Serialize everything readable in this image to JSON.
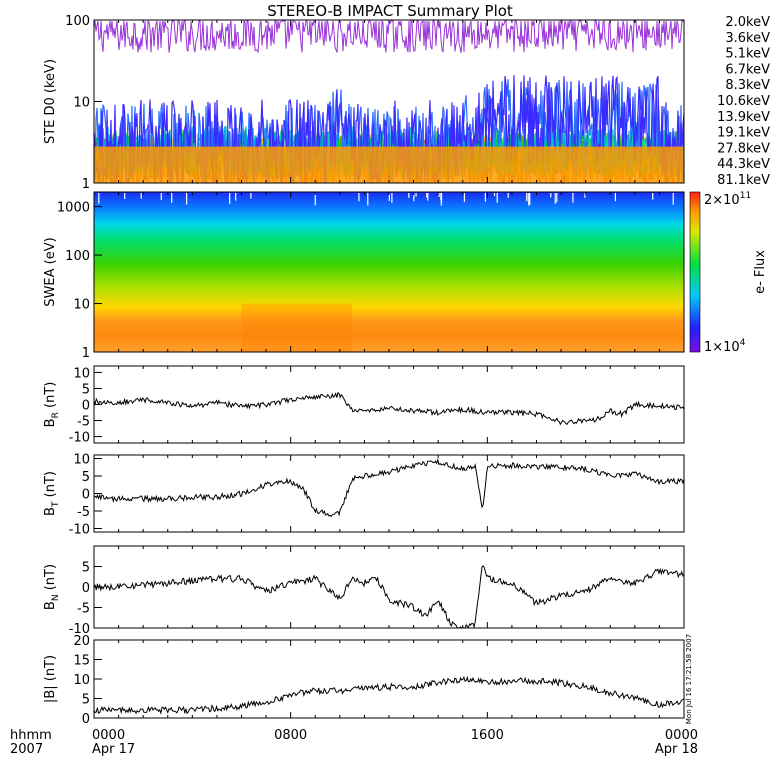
{
  "chart_data": {
    "title": "STEREO-B IMPACT Summary Plot",
    "x_axis": {
      "row1_label": "hhmm",
      "row2_label": "2007",
      "ticks": [
        {
          "hour": 0,
          "label": "0000",
          "date": "Apr 17"
        },
        {
          "hour": 8,
          "label": "0800",
          "date": ""
        },
        {
          "hour": 16,
          "label": "1600",
          "date": ""
        },
        {
          "hour": 24,
          "label": "0000",
          "date": "Apr 18"
        }
      ],
      "range": [
        0,
        24
      ]
    },
    "side_note": "Mon Jul 16 17:21:58 2007",
    "panels": [
      {
        "id": "ste",
        "type": "line",
        "ylabel": "STE D0 (keV)",
        "yscale": "log",
        "ylim": [
          1,
          100
        ],
        "yticks": [
          1,
          10,
          100
        ],
        "series": [
          {
            "name": "2.0keV",
            "color": "#9a32d8",
            "level": 70,
            "noise": 0.25
          },
          {
            "name": "3.6keV",
            "color": "#3a2aff",
            "level": 3.0,
            "noise": 0.55
          },
          {
            "name": "5.1keV",
            "color": "#2a6cff",
            "level": 3.0,
            "noise": 0.5
          },
          {
            "name": "6.7keV",
            "color": "#00a8e0",
            "level": 2.5,
            "noise": 0.3
          },
          {
            "name": "8.3keV",
            "color": "#00d0b8",
            "level": 2.4,
            "noise": 0.3
          },
          {
            "name": "10.6keV",
            "color": "#00cc44",
            "level": 2.3,
            "noise": 0.3
          },
          {
            "name": "13.9keV",
            "color": "#30c010",
            "level": 2.2,
            "noise": 0.3
          },
          {
            "name": "19.1keV",
            "color": "#b8d800",
            "level": 2.1,
            "noise": 0.3
          },
          {
            "name": "27.8keV",
            "color": "#ffb000",
            "level": 2.0,
            "noise": 0.3
          },
          {
            "name": "44.3keV",
            "color": "#ff7a00",
            "level": 1.9,
            "noise": 0.3
          },
          {
            "name": "81.1keV",
            "color": "#e01010",
            "level": 1.8,
            "noise": 0.3
          }
        ]
      },
      {
        "id": "swea",
        "type": "heatmap",
        "ylabel": "SWEA (eV)",
        "yscale": "log",
        "ylim": [
          1,
          2000
        ],
        "yticks": [
          1,
          10,
          100,
          1000
        ],
        "colorbar": {
          "label": "e- Flux",
          "max_label": "2x10^11",
          "min_label": "1x10^4",
          "max_mantissa": "2×10",
          "max_exp": "11",
          "min_mantissa": "1×10",
          "min_exp": "4"
        }
      },
      {
        "id": "br",
        "type": "line",
        "ylabel_main": "B",
        "ylabel_sub": "R",
        "ylabel_unit": "(nT)",
        "ylim": [
          -12,
          12
        ],
        "yticks": [
          -10,
          -5,
          0,
          5,
          10
        ],
        "x": [
          0,
          1,
          2,
          3,
          4,
          5,
          6,
          7,
          8,
          9,
          9.5,
          10,
          10.5,
          11,
          11.5,
          12,
          13,
          14,
          15,
          16,
          17,
          18,
          19,
          20,
          20.5,
          21,
          21.5,
          22,
          23,
          24
        ],
        "values": [
          1,
          0.5,
          1.5,
          0.5,
          -0.5,
          0.5,
          -0.5,
          0,
          1.5,
          2.5,
          2.5,
          3,
          -2,
          -2,
          -1.5,
          -1,
          -2,
          -2.5,
          -1.5,
          -2.5,
          -2.5,
          -3,
          -5.5,
          -5,
          -4.5,
          -2,
          -3,
          0,
          -0.5,
          -1
        ]
      },
      {
        "id": "bt",
        "type": "line",
        "ylabel_main": "B",
        "ylabel_sub": "T",
        "ylabel_unit": "(nT)",
        "ylim": [
          -11,
          11
        ],
        "yticks": [
          -10,
          -5,
          0,
          5,
          10
        ],
        "x": [
          0,
          1,
          2,
          3,
          4,
          5,
          6,
          7,
          8,
          8.5,
          9,
          9.5,
          10,
          10.5,
          11,
          12,
          13,
          14,
          15,
          15.5,
          15.8,
          16,
          17,
          18,
          19,
          20,
          21,
          22,
          23,
          24
        ],
        "values": [
          -1,
          -1.5,
          -1.5,
          -1.5,
          -1,
          -1,
          0,
          2.5,
          3.5,
          1.5,
          -5,
          -6,
          -5.5,
          4,
          5,
          6,
          8,
          9,
          7,
          8,
          -5,
          8,
          8,
          7.5,
          7.5,
          7,
          5,
          5.5,
          3.5,
          3.5
        ]
      },
      {
        "id": "bn",
        "type": "line",
        "ylabel_main": "B",
        "ylabel_sub": "N",
        "ylabel_unit": "(nT)",
        "ylim": [
          -10,
          10
        ],
        "yticks": [
          -10,
          -5,
          0,
          5
        ],
        "x": [
          0,
          1,
          2,
          3,
          4,
          5,
          6,
          7,
          8,
          9,
          10,
          10.5,
          11,
          11.5,
          12,
          12.5,
          13,
          13.5,
          14,
          14.5,
          15,
          15.5,
          15.8,
          16,
          17,
          18,
          19,
          20,
          21,
          22,
          23,
          24
        ],
        "values": [
          0,
          0,
          0.5,
          1,
          1.5,
          2,
          2,
          -1,
          1,
          2,
          -3,
          2,
          1,
          2,
          -3,
          -4,
          -5,
          -7,
          -3,
          -9,
          -10,
          -9,
          6,
          2,
          1,
          -4,
          -2,
          -1,
          2,
          1,
          4,
          3
        ]
      },
      {
        "id": "bmag",
        "type": "line",
        "ylabel": "|B| (nT)",
        "ylim": [
          0,
          20
        ],
        "yticks": [
          0,
          5,
          10,
          15,
          20
        ],
        "x": [
          0,
          1,
          2,
          3,
          4,
          5,
          6,
          7,
          8,
          9,
          10,
          11,
          12,
          13,
          14,
          15,
          16,
          17,
          18,
          19,
          20,
          21,
          22,
          23,
          24
        ],
        "values": [
          2,
          2,
          2,
          2,
          2,
          2.5,
          3,
          4,
          6,
          7,
          7,
          7.5,
          8,
          8,
          9,
          10,
          9,
          9.5,
          9.5,
          9,
          8,
          6.5,
          5,
          3.5,
          4.5
        ]
      }
    ]
  }
}
